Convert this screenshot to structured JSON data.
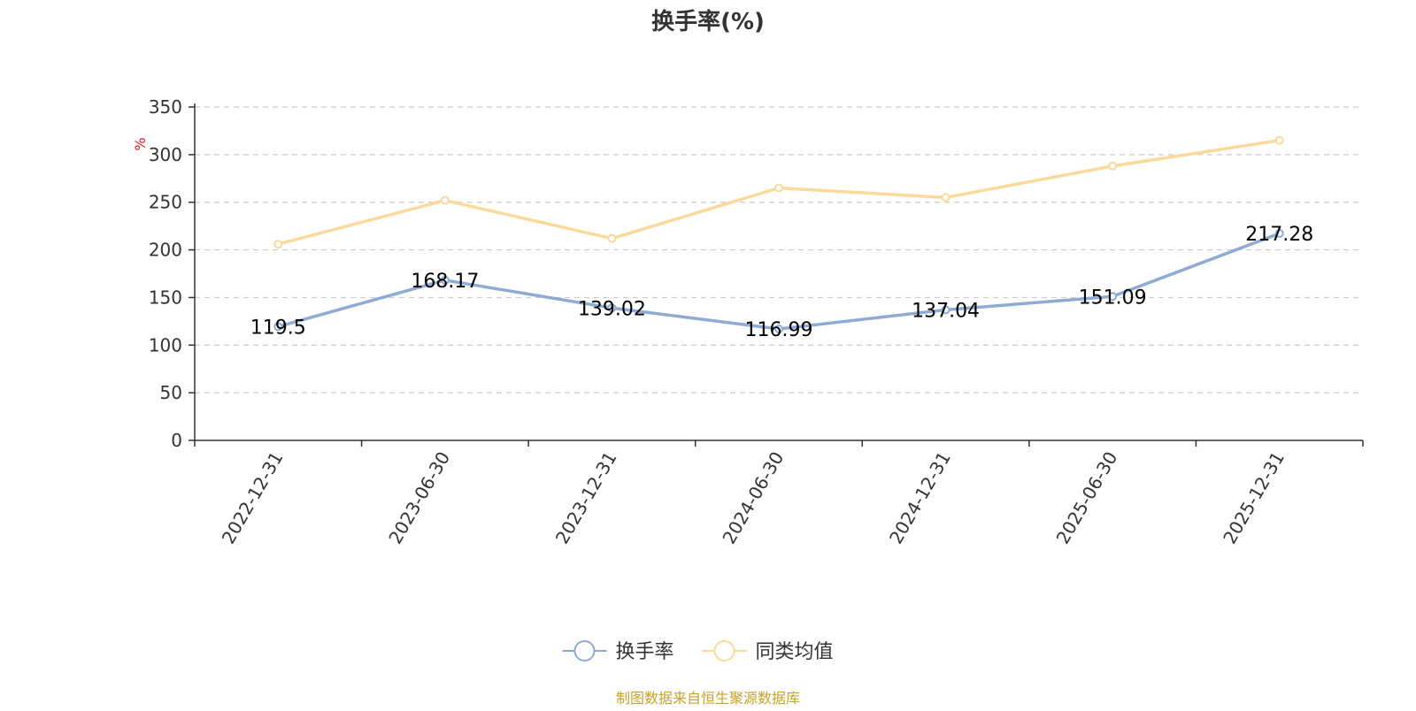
{
  "chart_data": {
    "type": "line",
    "title": "换手率(%)",
    "ylabel": "%",
    "xlabel": "",
    "categories": [
      "2022-12-31",
      "2023-06-30",
      "2023-12-31",
      "2024-06-30",
      "2024-12-31",
      "2025-06-30",
      "2025-12-31"
    ],
    "ylim": [
      0,
      350
    ],
    "yticks": [
      0,
      50,
      100,
      150,
      200,
      250,
      300,
      350
    ],
    "grid": true,
    "legend_position": "bottom",
    "series": [
      {
        "name": "换手率",
        "color": "#8eabd6",
        "values": [
          119.5,
          168.17,
          139.02,
          116.99,
          137.04,
          151.09,
          217.28
        ],
        "labels": [
          "119.5",
          "168.17",
          "139.02",
          "116.99",
          "137.04",
          "151.09",
          "217.28"
        ],
        "show_labels": true
      },
      {
        "name": "同类均值",
        "color": "#fbd99a",
        "values": [
          206,
          252,
          212,
          265,
          255,
          288,
          315
        ],
        "show_labels": false
      }
    ],
    "source": "制图数据来自恒生聚源数据库"
  },
  "colors": {
    "unit_label": "#e02020",
    "source_label": "#c9a227",
    "axis": "#333333",
    "grid": "#cccccc"
  }
}
